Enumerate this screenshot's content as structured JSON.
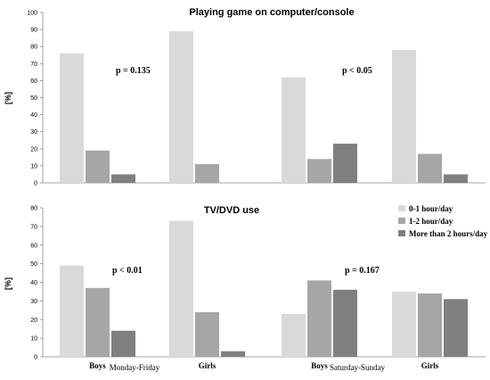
{
  "colors": {
    "0-1": "#d9d9d9",
    "1-2": "#a6a6a6",
    "more": "#7f7f7f"
  },
  "legend": [
    "0-1 hour/day",
    "1-2 hour/day",
    "More than 2 hours/day"
  ],
  "chart_data": [
    {
      "type": "bar",
      "title": "Playing game on computer/console",
      "ylabel": "[%]",
      "ylim": [
        0,
        100
      ],
      "yticks": [
        0,
        10,
        20,
        30,
        40,
        50,
        60,
        70,
        80,
        90,
        100
      ],
      "groups": [
        "Boys",
        "Girls",
        "Boys",
        "Girls"
      ],
      "series": [
        {
          "name": "0-1 hour/day",
          "values": [
            76,
            89,
            62,
            78
          ]
        },
        {
          "name": "1-2 hour/day",
          "values": [
            19,
            11,
            14,
            17
          ]
        },
        {
          "name": "More than 2 hours/day",
          "values": [
            5,
            0,
            23,
            5
          ]
        }
      ],
      "annotations": [
        "p = 0.135",
        "p < 0.05"
      ],
      "grid": false
    },
    {
      "type": "bar",
      "title": "TV/DVD use",
      "ylabel": "[%]",
      "ylim": [
        0,
        80
      ],
      "yticks": [
        0,
        10,
        20,
        30,
        40,
        50,
        60,
        70,
        80
      ],
      "groups": [
        "Boys",
        "Girls",
        "Boys",
        "Girls"
      ],
      "series": [
        {
          "name": "0-1 hour/day",
          "values": [
            49,
            73,
            23,
            35
          ]
        },
        {
          "name": "1-2 hour/day",
          "values": [
            37,
            24,
            41,
            34
          ]
        },
        {
          "name": "More than 2 hours/day",
          "values": [
            14,
            3,
            36,
            31
          ]
        }
      ],
      "annotations": [
        "p < 0.01",
        "p = 0.167"
      ],
      "periods": [
        "Monday-Friday",
        "Saturday-Sunday"
      ],
      "grid": false,
      "legend_position": "top-right"
    }
  ]
}
